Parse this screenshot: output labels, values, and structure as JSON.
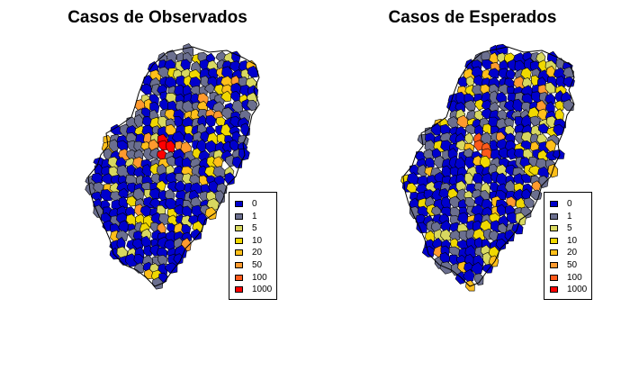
{
  "panels": [
    {
      "title": "Casos de Observados",
      "map_name": "observed-map",
      "centre_class": 7,
      "pattern_seed": 11
    },
    {
      "title": "Casos de Esperados",
      "map_name": "expected-map",
      "centre_class": 6,
      "pattern_seed": 29
    }
  ],
  "legend": {
    "items": [
      {
        "label": "0",
        "color": "#0000cd"
      },
      {
        "label": "1",
        "color": "#6b6f8f"
      },
      {
        "label": "5",
        "color": "#d8d860"
      },
      {
        "label": "10",
        "color": "#f0d800"
      },
      {
        "label": "20",
        "color": "#ffbf1a"
      },
      {
        "label": "50",
        "color": "#ff9a2e"
      },
      {
        "label": "100",
        "color": "#ff5a1a"
      },
      {
        "label": "1000",
        "color": "#ff0000"
      }
    ]
  }
}
